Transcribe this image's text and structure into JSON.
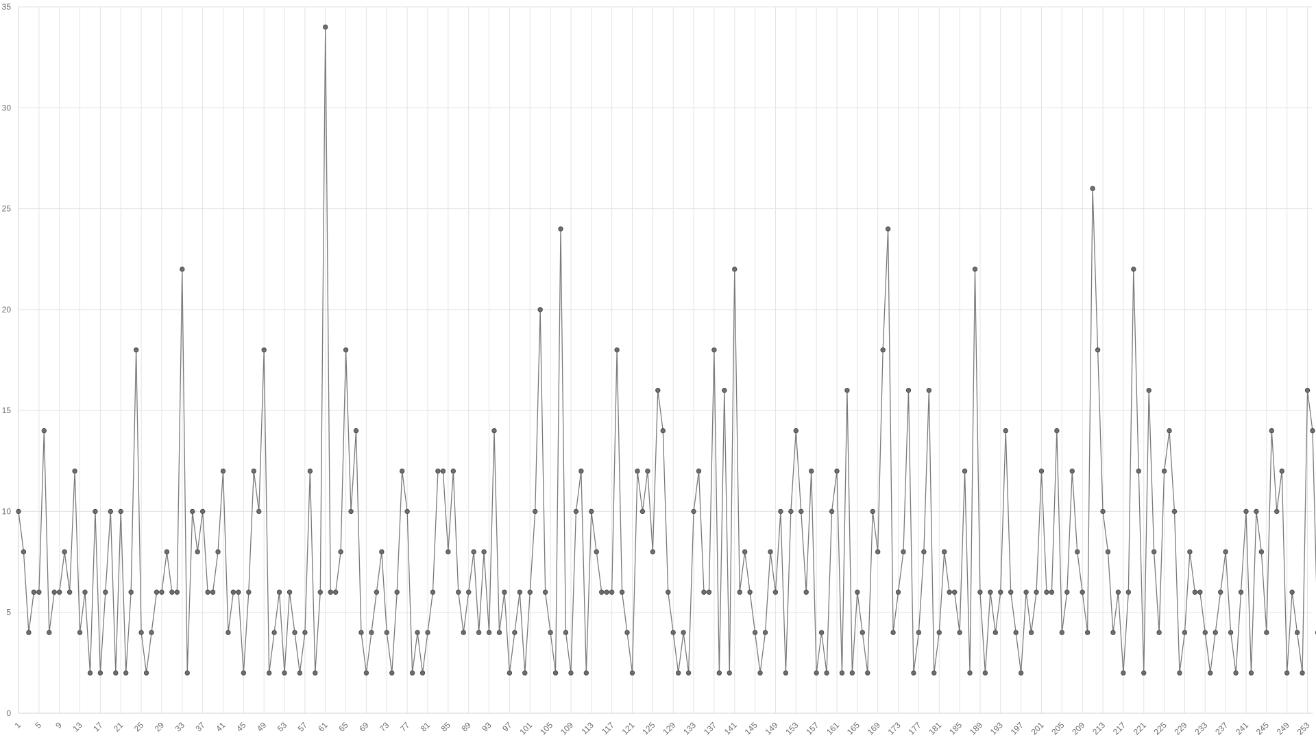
{
  "chart_data": {
    "type": "line",
    "title": "",
    "xlabel": "",
    "ylabel": "",
    "x_start": 1,
    "x_end": 254,
    "x_tick_start": 1,
    "x_tick_step": 4,
    "ylim": [
      0,
      35
    ],
    "y_ticks": [
      0,
      5,
      10,
      15,
      20,
      25,
      30,
      35
    ],
    "grid": true,
    "legend": "none",
    "colors": {
      "line": "#7a7a7a",
      "point": "#6e6e6e",
      "grid": "#e3e3e3",
      "tick_text": "#6b6b6b"
    },
    "series": [
      {
        "values": [
          10,
          8,
          4,
          6,
          6,
          14,
          4,
          6,
          6,
          8,
          6,
          12,
          4,
          6,
          2,
          10,
          2,
          6,
          10,
          2,
          10,
          2,
          6,
          18,
          4,
          2,
          4,
          6,
          6,
          8,
          6,
          6,
          22,
          2,
          10,
          8,
          10,
          6,
          6,
          8,
          12,
          4,
          6,
          6,
          2,
          6,
          12,
          10,
          18,
          2,
          4,
          6,
          2,
          6,
          4,
          2,
          4,
          12,
          2,
          6,
          34,
          6,
          6,
          8,
          18,
          10,
          14,
          4,
          2,
          4,
          6,
          8,
          4,
          2,
          6,
          12,
          10,
          2,
          4,
          2,
          4,
          6,
          12,
          12,
          8,
          12,
          6,
          4,
          6,
          8,
          4,
          8,
          4,
          14,
          4,
          6,
          2,
          4,
          6,
          2,
          6,
          10,
          20,
          6,
          4,
          2,
          24,
          4,
          2,
          10,
          12,
          2,
          10,
          8,
          6,
          6,
          6,
          18,
          6,
          4,
          2,
          12,
          10,
          12,
          8,
          16,
          14,
          6,
          4,
          2,
          4,
          2,
          10,
          12,
          6,
          6,
          18,
          2,
          16,
          2,
          22,
          6,
          8,
          6,
          4,
          2,
          4,
          8,
          6,
          10,
          2,
          10,
          14,
          10,
          6,
          12,
          2,
          4,
          2,
          10,
          12,
          2,
          16,
          2,
          6,
          4,
          2,
          10,
          8,
          18,
          24,
          4,
          6,
          8,
          16,
          2,
          4,
          8,
          16,
          2,
          4,
          8,
          6,
          6,
          4,
          12,
          2,
          22,
          6,
          2,
          6,
          4,
          6,
          14,
          6,
          4,
          2,
          6,
          4,
          6,
          12,
          6,
          6,
          14,
          4,
          6,
          12,
          8,
          6,
          4,
          26,
          18,
          10,
          8,
          4,
          6,
          2,
          6,
          22,
          12,
          2,
          16,
          8,
          4,
          12,
          14,
          10,
          2,
          4,
          8,
          6,
          6,
          4,
          2,
          4,
          6,
          8,
          4,
          2,
          6,
          10,
          2,
          10,
          8,
          4,
          14,
          10,
          12,
          2,
          6,
          4,
          2,
          16,
          14,
          4
        ]
      }
    ]
  }
}
